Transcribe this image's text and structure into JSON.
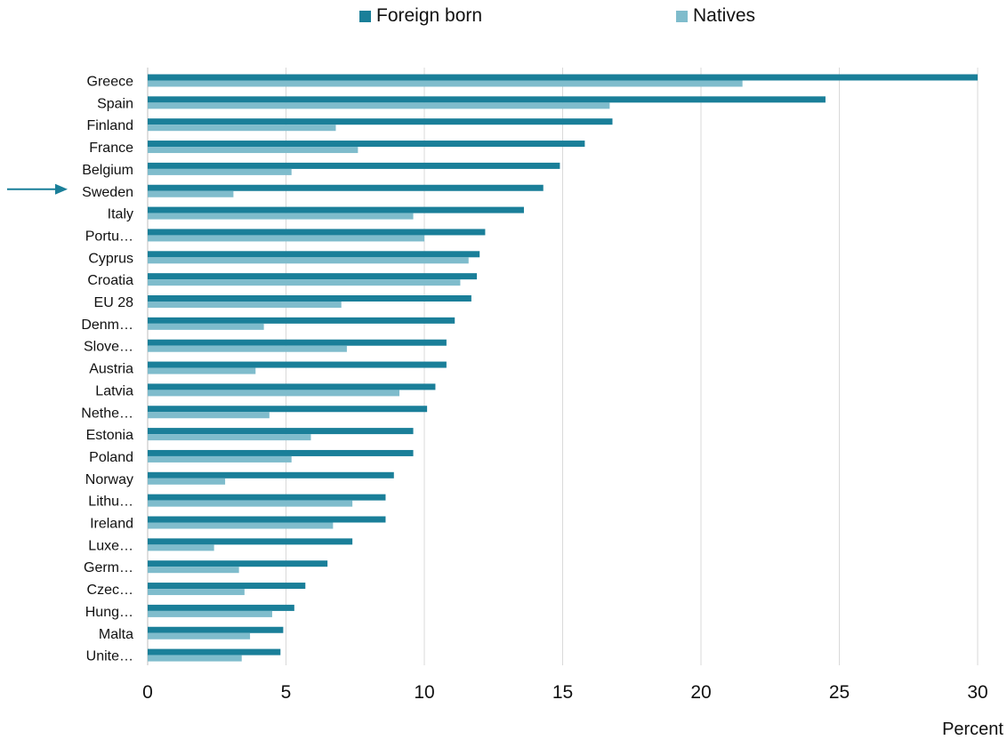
{
  "chart_data": {
    "type": "bar",
    "orientation": "horizontal",
    "categories": [
      "Greece",
      "Spain",
      "Finland",
      "France",
      "Belgium",
      "Sweden",
      "Italy",
      "Portu…",
      "Cyprus",
      "Croatia",
      "EU 28",
      "Denm…",
      "Slove…",
      "Austria",
      "Latvia",
      "Nethe…",
      "Estonia",
      "Poland",
      "Norway",
      "Lithu…",
      "Ireland",
      "Luxe…",
      "Germ…",
      "Czec…",
      "Hung…",
      "Malta",
      "Unite…"
    ],
    "series": [
      {
        "name": "Foreign born",
        "color": "#1a7f99",
        "values": [
          30.0,
          24.5,
          16.8,
          15.8,
          14.9,
          14.3,
          13.6,
          12.2,
          12.0,
          11.9,
          11.7,
          11.1,
          10.8,
          10.8,
          10.4,
          10.1,
          9.6,
          9.6,
          8.9,
          8.6,
          8.6,
          7.4,
          6.5,
          5.7,
          5.3,
          4.9,
          4.8
        ]
      },
      {
        "name": "Natives",
        "color": "#7fbccc",
        "values": [
          21.5,
          16.7,
          6.8,
          7.6,
          5.2,
          3.1,
          9.6,
          10.0,
          11.6,
          11.3,
          7.0,
          4.2,
          7.2,
          3.9,
          9.1,
          4.4,
          5.9,
          5.2,
          2.8,
          7.4,
          6.7,
          2.4,
          3.3,
          3.5,
          4.5,
          3.7,
          3.4
        ]
      }
    ],
    "xlim": [
      0,
      30
    ],
    "xticks": [
      0,
      5,
      10,
      15,
      20,
      25,
      30
    ],
    "xlabel": "Percent",
    "title": "",
    "grid": "vertical",
    "legend": "top-center",
    "highlight_category": "Sweden",
    "highlight_color": "#1a7f99"
  }
}
